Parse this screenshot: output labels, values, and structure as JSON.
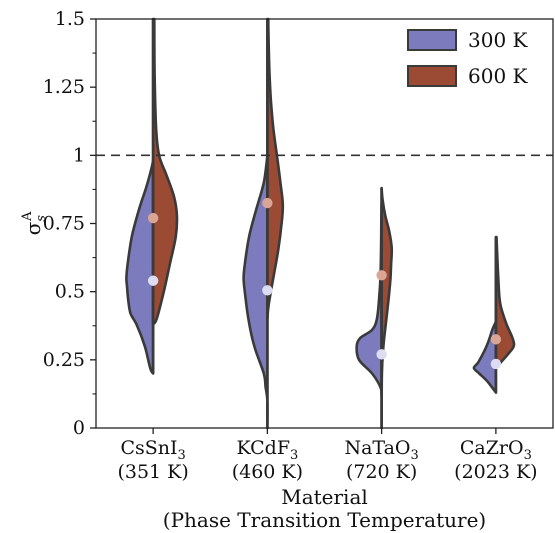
{
  "chart_data": {
    "type": "violin",
    "title": "",
    "xlabel_lines": [
      "Material",
      "(Phase Transition Temperature)"
    ],
    "ylabel": {
      "main": "σ",
      "sub": "s",
      "sup": "A"
    },
    "ylim": [
      0,
      1.5
    ],
    "yticks": [
      "0",
      "0.25",
      "0.5",
      "0.75",
      "1",
      "1.25",
      "1.5"
    ],
    "reference_line": {
      "y": 1.0,
      "style": "dashed"
    },
    "categories": [
      {
        "name": "CsSnI",
        "sub": "3",
        "temp": "(351 K)"
      },
      {
        "name": "KCdF",
        "sub": "3",
        "temp": "(460 K)"
      },
      {
        "name": "NaTaO",
        "sub": "3",
        "temp": "(720 K)"
      },
      {
        "name": "CaZrO",
        "sub": "3",
        "temp": "(2023 K)"
      }
    ],
    "legend": {
      "position": "top-right"
    },
    "series": [
      {
        "name": "300 K",
        "color": "#7b7bbd",
        "point_color": "#dcdcf2",
        "median": [
          0.54,
          0.505,
          0.27,
          0.235
        ],
        "shapes": [
          [
            [
              0.2,
              0.0
            ],
            [
              0.22,
              0.05
            ],
            [
              0.3,
              0.14
            ],
            [
              0.38,
              0.28
            ],
            [
              0.42,
              0.38
            ],
            [
              0.47,
              0.42
            ],
            [
              0.52,
              0.44
            ],
            [
              0.55,
              0.45
            ],
            [
              0.6,
              0.43
            ],
            [
              0.7,
              0.36
            ],
            [
              0.8,
              0.24
            ],
            [
              0.88,
              0.12
            ],
            [
              0.95,
              0.03
            ],
            [
              0.98,
              0.0
            ]
          ],
          [
            [
              0.0,
              0.0
            ],
            [
              0.1,
              0.0
            ],
            [
              0.15,
              0.03
            ],
            [
              0.2,
              0.06
            ],
            [
              0.3,
              0.22
            ],
            [
              0.4,
              0.32
            ],
            [
              0.5,
              0.38
            ],
            [
              0.55,
              0.4
            ],
            [
              0.6,
              0.38
            ],
            [
              0.7,
              0.31
            ],
            [
              0.8,
              0.19
            ],
            [
              0.9,
              0.06
            ],
            [
              1.0,
              0.0
            ]
          ],
          [
            [
              0.12,
              0.0
            ],
            [
              0.15,
              0.02
            ],
            [
              0.2,
              0.16
            ],
            [
              0.25,
              0.38
            ],
            [
              0.3,
              0.42
            ],
            [
              0.33,
              0.36
            ],
            [
              0.36,
              0.16
            ],
            [
              0.4,
              0.08
            ],
            [
              0.48,
              0.04
            ],
            [
              0.55,
              0.02
            ],
            [
              0.65,
              0.01
            ],
            [
              0.75,
              0.005
            ],
            [
              0.82,
              0.0
            ]
          ],
          [
            [
              0.13,
              0.0
            ],
            [
              0.17,
              0.14
            ],
            [
              0.2,
              0.28
            ],
            [
              0.22,
              0.37
            ],
            [
              0.24,
              0.3
            ],
            [
              0.28,
              0.2
            ],
            [
              0.32,
              0.12
            ],
            [
              0.36,
              0.06
            ],
            [
              0.39,
              0.0
            ]
          ]
        ]
      },
      {
        "name": "600 K",
        "color": "#9b4a34",
        "point_color": "#d9a595",
        "median": [
          0.77,
          0.825,
          0.56,
          0.325
        ],
        "shapes": [
          [
            [
              0.38,
              0.0
            ],
            [
              0.4,
              0.06
            ],
            [
              0.5,
              0.18
            ],
            [
              0.6,
              0.28
            ],
            [
              0.7,
              0.38
            ],
            [
              0.78,
              0.4
            ],
            [
              0.85,
              0.35
            ],
            [
              0.93,
              0.22
            ],
            [
              1.0,
              0.1
            ],
            [
              1.1,
              0.05
            ],
            [
              1.3,
              0.025
            ],
            [
              1.5,
              0.02
            ]
          ],
          [
            [
              0.4,
              0.0
            ],
            [
              0.45,
              0.02
            ],
            [
              0.55,
              0.1
            ],
            [
              0.65,
              0.18
            ],
            [
              0.75,
              0.24
            ],
            [
              0.82,
              0.26
            ],
            [
              0.9,
              0.22
            ],
            [
              1.0,
              0.16
            ],
            [
              1.1,
              0.1
            ],
            [
              1.2,
              0.06
            ],
            [
              1.3,
              0.035
            ],
            [
              1.42,
              0.02
            ],
            [
              1.5,
              0.015
            ]
          ],
          [
            [
              0.0,
              0.0
            ],
            [
              0.2,
              0.005
            ],
            [
              0.3,
              0.03
            ],
            [
              0.4,
              0.08
            ],
            [
              0.5,
              0.13
            ],
            [
              0.55,
              0.15
            ],
            [
              0.6,
              0.16
            ],
            [
              0.66,
              0.17
            ],
            [
              0.72,
              0.13
            ],
            [
              0.78,
              0.06
            ],
            [
              0.84,
              0.015
            ],
            [
              0.88,
              0.0
            ]
          ],
          [
            [
              0.22,
              0.0
            ],
            [
              0.24,
              0.08
            ],
            [
              0.27,
              0.2
            ],
            [
              0.3,
              0.3
            ],
            [
              0.33,
              0.28
            ],
            [
              0.38,
              0.18
            ],
            [
              0.44,
              0.09
            ],
            [
              0.48,
              0.06
            ],
            [
              0.55,
              0.04
            ],
            [
              0.62,
              0.025
            ],
            [
              0.7,
              0.01
            ]
          ]
        ]
      }
    ]
  }
}
